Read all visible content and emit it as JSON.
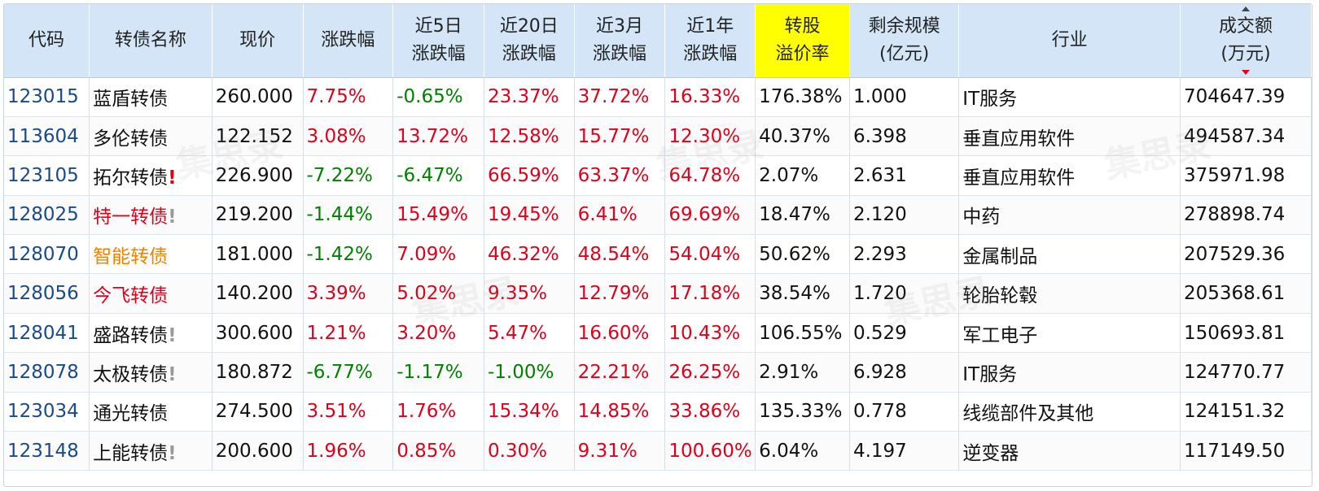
{
  "header": {
    "columns": [
      {
        "key": "code",
        "label": "代码"
      },
      {
        "key": "name",
        "label": "转债名称"
      },
      {
        "key": "price",
        "label": "现价"
      },
      {
        "key": "change",
        "label": "涨跌幅"
      },
      {
        "key": "chg5d",
        "label": "近5日\n涨跌幅"
      },
      {
        "key": "chg20d",
        "label": "近20日\n涨跌幅"
      },
      {
        "key": "chg3m",
        "label": "近3月\n涨跌幅"
      },
      {
        "key": "chg1y",
        "label": "近1年\n涨跌幅"
      },
      {
        "key": "premium",
        "label": "转股\n溢价率",
        "highlight": true
      },
      {
        "key": "remain",
        "label": "剩余规模\n(亿元)"
      },
      {
        "key": "industry",
        "label": "行业"
      },
      {
        "key": "volume",
        "label": "成交额\n(万元)",
        "sorted": "desc"
      }
    ]
  },
  "colors": {
    "up": "#e0001b",
    "down": "#008000",
    "code": "#1a4a8a",
    "header_bg": "#d3e5f6",
    "highlight_bg": "#ffff00"
  },
  "rows": [
    {
      "code": "123015",
      "name": "蓝盾转债",
      "name_color": "black",
      "mark": "",
      "price": "260.000",
      "change": "7.75%",
      "chg5d": "-0.65%",
      "chg20d": "23.37%",
      "chg3m": "37.72%",
      "chg1y": "16.33%",
      "premium": "176.38%",
      "remain": "1.000",
      "industry": "IT服务",
      "volume": "704647.39"
    },
    {
      "code": "113604",
      "name": "多伦转债",
      "name_color": "black",
      "mark": "",
      "price": "122.152",
      "change": "3.08%",
      "chg5d": "13.72%",
      "chg20d": "12.58%",
      "chg3m": "15.77%",
      "chg1y": "12.30%",
      "premium": "40.37%",
      "remain": "6.398",
      "industry": "垂直应用软件",
      "volume": "494587.34"
    },
    {
      "code": "123105",
      "name": "拓尔转债",
      "name_color": "black",
      "mark": "!",
      "mark_color": "red",
      "price": "226.900",
      "change": "-7.22%",
      "chg5d": "-6.47%",
      "chg20d": "66.59%",
      "chg3m": "63.37%",
      "chg1y": "64.78%",
      "premium": "2.07%",
      "remain": "2.631",
      "industry": "垂直应用软件",
      "volume": "375971.98"
    },
    {
      "code": "128025",
      "name": "特一转债",
      "name_color": "red",
      "mark": "!",
      "mark_color": "gray",
      "price": "219.200",
      "change": "-1.44%",
      "chg5d": "15.49%",
      "chg20d": "19.45%",
      "chg3m": "6.41%",
      "chg1y": "69.69%",
      "premium": "18.47%",
      "remain": "2.120",
      "industry": "中药",
      "volume": "278898.74"
    },
    {
      "code": "128070",
      "name": "智能转债",
      "name_color": "orange",
      "mark": "",
      "price": "181.000",
      "change": "-1.42%",
      "chg5d": "7.09%",
      "chg20d": "46.32%",
      "chg3m": "48.54%",
      "chg1y": "54.04%",
      "premium": "50.62%",
      "remain": "2.293",
      "industry": "金属制品",
      "volume": "207529.36"
    },
    {
      "code": "128056",
      "name": "今飞转债",
      "name_color": "red",
      "mark": "",
      "price": "140.200",
      "change": "3.39%",
      "chg5d": "5.02%",
      "chg20d": "9.35%",
      "chg3m": "12.79%",
      "chg1y": "17.18%",
      "premium": "38.54%",
      "remain": "1.720",
      "industry": "轮胎轮毂",
      "volume": "205368.61"
    },
    {
      "code": "128041",
      "name": "盛路转债",
      "name_color": "black",
      "mark": "!",
      "mark_color": "gray",
      "price": "300.600",
      "change": "1.21%",
      "chg5d": "3.20%",
      "chg20d": "5.47%",
      "chg3m": "16.60%",
      "chg1y": "10.43%",
      "premium": "106.55%",
      "remain": "0.529",
      "industry": "军工电子",
      "volume": "150693.81"
    },
    {
      "code": "128078",
      "name": "太极转债",
      "name_color": "black",
      "mark": "!",
      "mark_color": "gray",
      "price": "180.872",
      "change": "-6.77%",
      "chg5d": "-1.17%",
      "chg20d": "-1.00%",
      "chg3m": "22.21%",
      "chg1y": "26.25%",
      "premium": "2.91%",
      "remain": "6.928",
      "industry": "IT服务",
      "volume": "124770.77"
    },
    {
      "code": "123034",
      "name": "通光转债",
      "name_color": "black",
      "mark": "",
      "price": "274.500",
      "change": "3.51%",
      "chg5d": "1.76%",
      "chg20d": "15.34%",
      "chg3m": "14.85%",
      "chg1y": "33.86%",
      "premium": "135.33%",
      "remain": "0.778",
      "industry": "线缆部件及其他",
      "volume": "124151.32"
    },
    {
      "code": "123148",
      "name": "上能转债",
      "name_color": "black",
      "mark": "!",
      "mark_color": "gray",
      "price": "200.600",
      "change": "1.96%",
      "chg5d": "0.85%",
      "chg20d": "0.30%",
      "chg3m": "9.31%",
      "chg1y": "100.60%",
      "premium": "6.04%",
      "remain": "4.197",
      "industry": "逆变器",
      "volume": "117149.50"
    }
  ]
}
